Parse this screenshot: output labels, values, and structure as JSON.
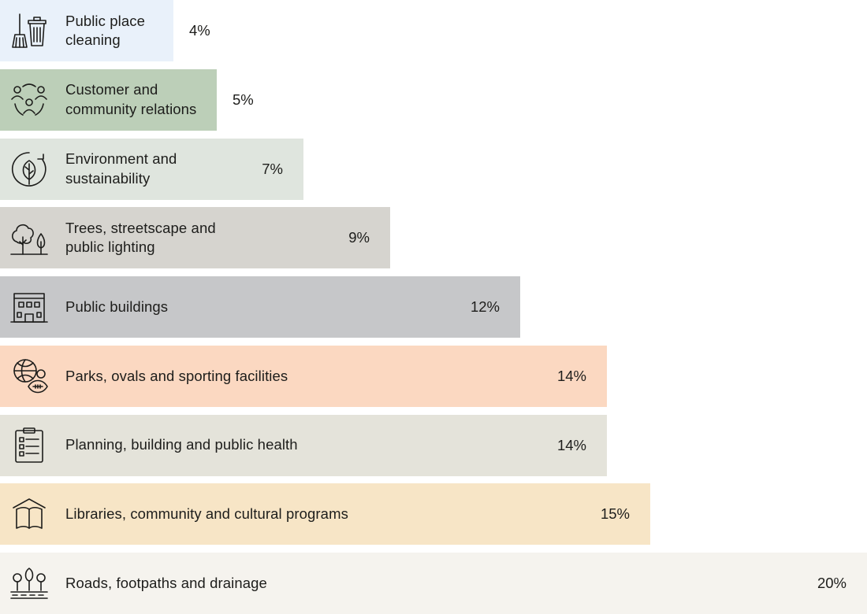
{
  "chart_data": {
    "type": "bar",
    "orientation": "horizontal",
    "categories": [
      "Public place\ncleaning",
      "Customer and\ncommunity relations",
      "Environment and\nsustainability",
      "Trees, streetscape and\npublic lighting",
      "Public buildings",
      "Parks, ovals and sporting facilities",
      "Planning, building and public health",
      "Libraries, community and cultural programs",
      "Roads, footpaths and drainage"
    ],
    "values": [
      4,
      5,
      7,
      9,
      12,
      14,
      14,
      15,
      20
    ],
    "value_labels": [
      "4%",
      "5%",
      "7%",
      "9%",
      "12%",
      "14%",
      "14%",
      "15%",
      "20%"
    ],
    "unit": "%",
    "colors": [
      "#e9f1fa",
      "#bccfb8",
      "#dfe5de",
      "#d6d4cf",
      "#c6c7c9",
      "#fbd8c1",
      "#e4e3da",
      "#f7e5c6",
      "#f5f3ee"
    ],
    "icons": [
      "broom-bin-icon",
      "people-network-icon",
      "leaf-cycle-icon",
      "trees-icon",
      "building-icon",
      "sports-balls-icon",
      "clipboard-checklist-icon",
      "library-book-icon",
      "road-trees-icon"
    ],
    "title": "",
    "xlabel": "",
    "ylabel": "",
    "xlim": [
      0,
      20
    ],
    "grid": false,
    "legend": "none"
  }
}
